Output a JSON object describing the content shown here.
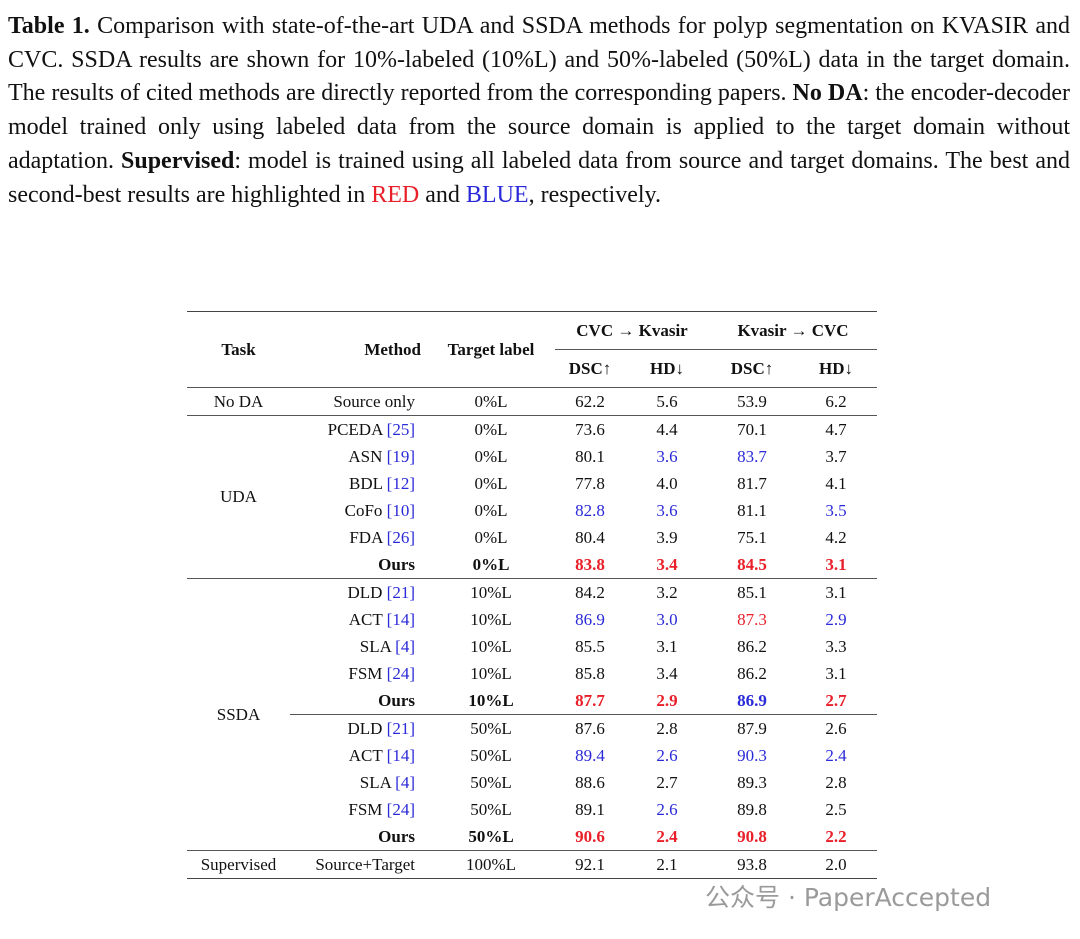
{
  "caption": {
    "label": "Table 1.",
    "text1": " Comparison with state-of-the-art UDA and SSDA methods for polyp segmentation on KVASIR and CVC. SSDA results are shown for 10%-labeled (10%L) and 50%-labeled (50%L) data in the target domain. The results of cited methods are directly reported from the corresponding papers. ",
    "term1": "No DA",
    "text2": ": the encoder-decoder model trained only using labeled data from the source domain is applied to the target domain without adaptation. ",
    "term2": "Supervised",
    "text3": ": model is trained using all labeled data from source and target domains. The best and second-best results are highlighted in ",
    "red": "RED",
    "text4": " and ",
    "blue": "BLUE",
    "text5": ", respectively."
  },
  "table": {
    "header": {
      "task": "Task",
      "method": "Method",
      "target": "Target label",
      "groups": [
        "CVC → Kvasir",
        "Kvasir → CVC"
      ],
      "metrics": [
        "DSC↑",
        "HD↓",
        "DSC↑",
        "HD↓"
      ]
    },
    "groups": [
      {
        "task": "No DA",
        "blocks": [
          [
            {
              "method": "Source only",
              "target": "0%L",
              "values": [
                "62.2",
                "5.6",
                "53.9",
                "6.2"
              ]
            }
          ]
        ]
      },
      {
        "task": "UDA",
        "blocks": [
          [
            {
              "method": "PCEDA",
              "cite": "[25]",
              "target": "0%L",
              "values": [
                "73.6",
                "4.4",
                "70.1",
                "4.7"
              ]
            },
            {
              "method": "ASN",
              "cite": "[19]",
              "target": "0%L",
              "values": [
                "80.1",
                "3.6",
                "83.7",
                "3.7"
              ],
              "highlight": [
                null,
                "blue",
                "blue",
                null
              ]
            },
            {
              "method": "BDL",
              "cite": "[12]",
              "target": "0%L",
              "values": [
                "77.8",
                "4.0",
                "81.7",
                "4.1"
              ]
            },
            {
              "method": "CoFo",
              "cite": "[10]",
              "target": "0%L",
              "values": [
                "82.8",
                "3.6",
                "81.1",
                "3.5"
              ],
              "highlight": [
                "blue",
                "blue",
                null,
                "blue"
              ]
            },
            {
              "method": "FDA",
              "cite": "[26]",
              "target": "0%L",
              "values": [
                "80.4",
                "3.9",
                "75.1",
                "4.2"
              ]
            },
            {
              "method": "Ours",
              "target": "0%L",
              "values": [
                "83.8",
                "3.4",
                "84.5",
                "3.1"
              ],
              "highlight": [
                "red",
                "red",
                "red",
                "red"
              ],
              "bold": true
            }
          ]
        ]
      },
      {
        "task": "SSDA",
        "blocks": [
          [
            {
              "method": "DLD",
              "cite": "[21]",
              "target": "10%L",
              "values": [
                "84.2",
                "3.2",
                "85.1",
                "3.1"
              ]
            },
            {
              "method": "ACT",
              "cite": "[14]",
              "target": "10%L",
              "values": [
                "86.9",
                "3.0",
                "87.3",
                "2.9"
              ],
              "highlight": [
                "blue",
                "blue",
                "red",
                "blue"
              ]
            },
            {
              "method": "SLA",
              "cite": "[4]",
              "target": "10%L",
              "values": [
                "85.5",
                "3.1",
                "86.2",
                "3.3"
              ]
            },
            {
              "method": "FSM",
              "cite": "[24]",
              "target": "10%L",
              "values": [
                "85.8",
                "3.4",
                "86.2",
                "3.1"
              ]
            },
            {
              "method": "Ours",
              "target": "10%L",
              "values": [
                "87.7",
                "2.9",
                "86.9",
                "2.7"
              ],
              "highlight": [
                "red",
                "red",
                "blue",
                "red"
              ],
              "bold": true
            }
          ],
          [
            {
              "method": "DLD",
              "cite": "[21]",
              "target": "50%L",
              "values": [
                "87.6",
                "2.8",
                "87.9",
                "2.6"
              ]
            },
            {
              "method": "ACT",
              "cite": "[14]",
              "target": "50%L",
              "values": [
                "89.4",
                "2.6",
                "90.3",
                "2.4"
              ],
              "highlight": [
                "blue",
                "blue",
                "blue",
                "blue"
              ]
            },
            {
              "method": "SLA",
              "cite": "[4]",
              "target": "50%L",
              "values": [
                "88.6",
                "2.7",
                "89.3",
                "2.8"
              ]
            },
            {
              "method": "FSM",
              "cite": "[24]",
              "target": "50%L",
              "values": [
                "89.1",
                "2.6",
                "89.8",
                "2.5"
              ],
              "highlight": [
                null,
                "blue",
                null,
                null
              ]
            },
            {
              "method": "Ours",
              "target": "50%L",
              "values": [
                "90.6",
                "2.4",
                "90.8",
                "2.2"
              ],
              "highlight": [
                "red",
                "red",
                "red",
                "red"
              ],
              "bold": true
            }
          ]
        ]
      },
      {
        "task": "Supervised",
        "blocks": [
          [
            {
              "method": "Source+Target",
              "target": "100%L",
              "values": [
                "92.1",
                "2.1",
                "93.8",
                "2.0"
              ]
            }
          ]
        ]
      }
    ]
  },
  "watermark": "公众号 · PaperAccepted"
}
